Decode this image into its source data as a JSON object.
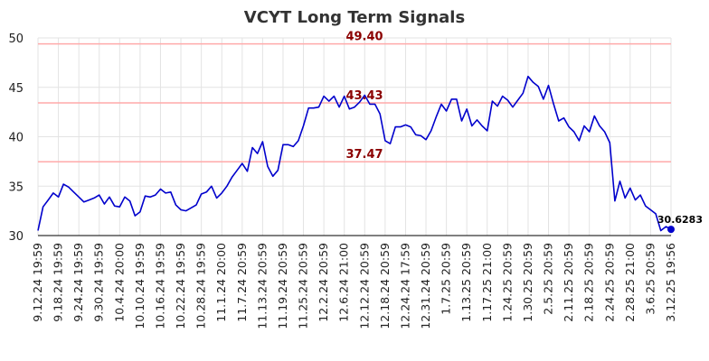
{
  "chart_data": {
    "type": "line",
    "title": "VCYT Long Term Signals",
    "xlabel": "",
    "ylabel": "",
    "ylim": [
      30,
      50
    ],
    "yticks": [
      30,
      35,
      40,
      45,
      50
    ],
    "grid": true,
    "x_tick_labels": [
      "9.12.24 19:59",
      "9.18.24 19:59",
      "9.24.24 19:59",
      "9.30.24 19:59",
      "10.4.24 20:00",
      "10.10.24 19:59",
      "10.16.24 19:59",
      "10.22.24 19:59",
      "10.28.24 19:59",
      "11.1.24 20:00",
      "11.7.24 20:59",
      "11.13.24 20:59",
      "11.19.24 20:59",
      "11.25.24 20:59",
      "12.2.24 20:59",
      "12.6.24 21:00",
      "12.12.24 20:59",
      "12.18.24 20:59",
      "12.24.24 17:59",
      "12.31.24 20:59",
      "1.7.25 20:59",
      "1.13.25 20:59",
      "1.17.25 21:00",
      "1.24.25 20:59",
      "1.30.25 20:59",
      "2.5.25 20:59",
      "2.11.25 20:59",
      "2.18.25 20:59",
      "2.24.25 20:59",
      "2.28.25 21:00",
      "3.6.25 20:59",
      "3.12.25 19:56"
    ],
    "series": [
      {
        "color": "#0000cc",
        "values": [
          30.5,
          32.9,
          33.6,
          34.3,
          33.9,
          35.2,
          34.9,
          34.4,
          33.9,
          33.4,
          33.6,
          33.8,
          34.1,
          33.2,
          33.9,
          33.0,
          32.9,
          33.9,
          33.5,
          32.0,
          32.4,
          34.0,
          33.9,
          34.1,
          34.7,
          34.3,
          34.4,
          33.1,
          32.6,
          32.5,
          32.8,
          33.1,
          34.2,
          34.4,
          35.0,
          33.8,
          34.3,
          35.0,
          35.9,
          36.6,
          37.3,
          36.5,
          38.9,
          38.3,
          39.5,
          37.0,
          36.0,
          36.6,
          39.2,
          39.2,
          39.0,
          39.6,
          41.1,
          42.9,
          42.9,
          43.0,
          44.1,
          43.6,
          44.1,
          43.0,
          44.1,
          42.8,
          43.0,
          43.5,
          44.2,
          43.3,
          43.3,
          42.3,
          39.6,
          39.3,
          41.0,
          41.0,
          41.2,
          41.0,
          40.2,
          40.1,
          39.7,
          40.6,
          42.0,
          43.3,
          42.6,
          43.8,
          43.8,
          41.6,
          42.8,
          41.1,
          41.7,
          41.1,
          40.6,
          43.6,
          43.1,
          44.1,
          43.7,
          43.0,
          43.7,
          44.4,
          46.1,
          45.5,
          45.1,
          43.8,
          45.2,
          43.3,
          41.6,
          41.9,
          41.0,
          40.5,
          39.6,
          41.1,
          40.5,
          42.1,
          41.1,
          40.5,
          39.4,
          33.5,
          35.5,
          33.8,
          34.8,
          33.6,
          34.1,
          33.0,
          32.6,
          32.2,
          30.5,
          30.9,
          30.6283
        ]
      }
    ],
    "reference_lines": [
      {
        "value": 49.4,
        "label": "49.40",
        "color": "#ffaaaa"
      },
      {
        "value": 43.43,
        "label": "43.43",
        "color": "#ffaaaa"
      },
      {
        "value": 37.47,
        "label": "37.47",
        "color": "#ffaaaa"
      }
    ],
    "last_value_label": "30.6283"
  }
}
